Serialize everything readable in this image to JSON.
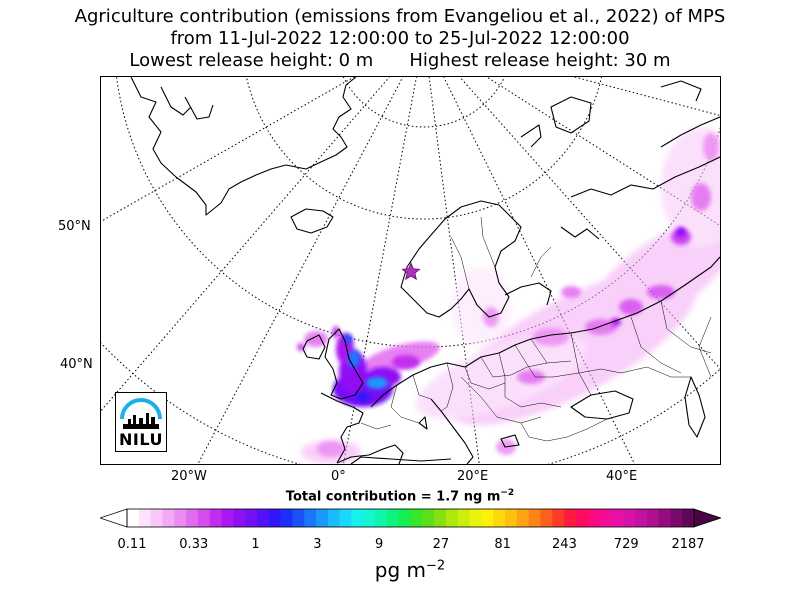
{
  "title": {
    "line1": "Agriculture contribution (emissions from Evangeliou et al., 2022) of MPS",
    "line2": "from 11-Jul-2022 12:00:00 to 25-Jul-2022 12:00:00",
    "line3_left": "Lowest release height: 0 m",
    "line3_right": "Highest release height: 30 m"
  },
  "map": {
    "lat_labels": [
      "50°N",
      "40°N"
    ],
    "lon_labels": [
      "20°W",
      "0°",
      "20°E",
      "40°E"
    ],
    "station_marker": "star",
    "logo_text": "NILU"
  },
  "total_contribution": "Total contribution = 1.7 ng m",
  "total_exponent": "−2",
  "colorbar": {
    "tick_labels": [
      "0.11",
      "0.33",
      "1",
      "3",
      "9",
      "27",
      "81",
      "243",
      "729",
      "2187"
    ],
    "unit": "pg m",
    "unit_exponent": "−2",
    "colors": [
      "#ffffff",
      "#fde3fd",
      "#f9c8f9",
      "#f3aaf5",
      "#ec8cf2",
      "#e26cf0",
      "#d54cf0",
      "#c22ef0",
      "#ab19f2",
      "#9010f4",
      "#7410f6",
      "#5512f7",
      "#3316f8",
      "#1e2ef9",
      "#1a52fa",
      "#1a76fb",
      "#1a98fb",
      "#1bbafc",
      "#1ad8fb",
      "#18f0f0",
      "#14f5d0",
      "#10f5a8",
      "#0cf47e",
      "#14ee50",
      "#36e82a",
      "#5ee018",
      "#86e012",
      "#aae80e",
      "#ccee0c",
      "#eaf40a",
      "#fef00a",
      "#fed80c",
      "#fec010",
      "#fea414",
      "#fe8418",
      "#fe601c",
      "#fe3a28",
      "#fe1a40",
      "#fe0c60",
      "#fc0a80",
      "#f40c98",
      "#e810a8",
      "#d812a8",
      "#c412a0",
      "#ae1090",
      "#960c80",
      "#7c0a6c",
      "#600858"
    ],
    "extend_left_color": "#ffffff",
    "extend_right_color": "#4a0640"
  }
}
